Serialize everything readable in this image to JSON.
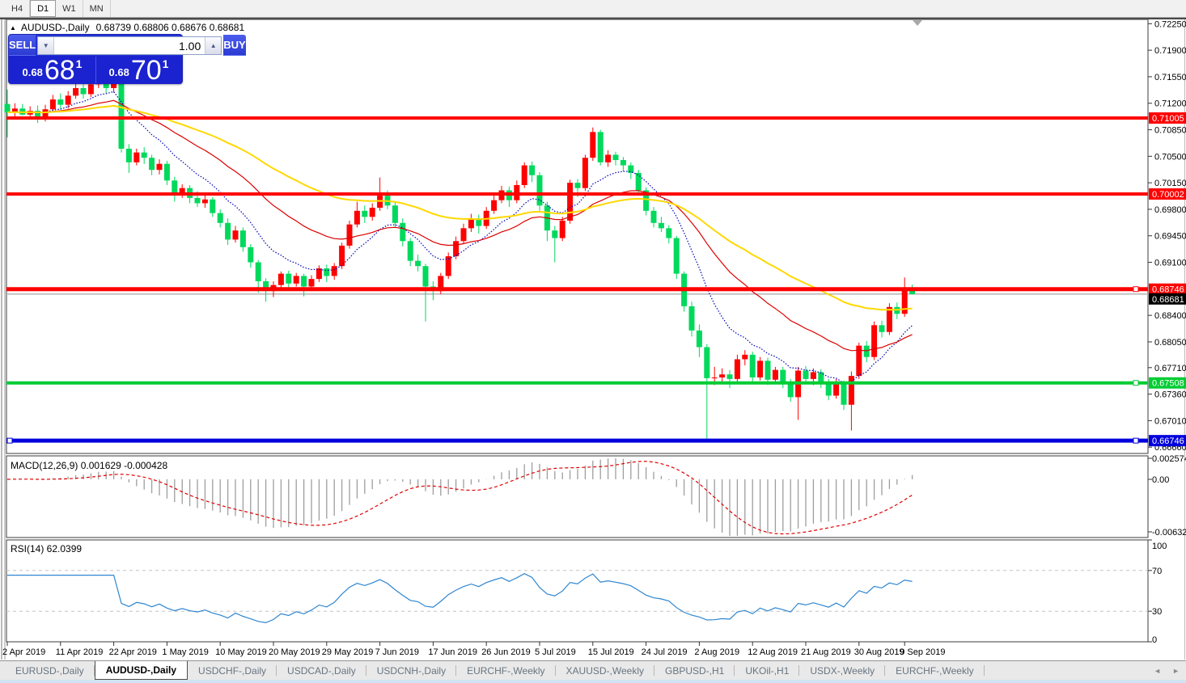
{
  "toolbar": {
    "timeframes": [
      {
        "label": "H4",
        "active": false
      },
      {
        "label": "D1",
        "active": true
      },
      {
        "label": "W1",
        "active": false
      },
      {
        "label": "MN",
        "active": false
      }
    ]
  },
  "header": {
    "collapse_icon": "▲",
    "symbol_title": "AUDUSD-,Daily",
    "ohlc_text": "0.68739 0.68806 0.68676 0.68681"
  },
  "trade_panel": {
    "sell_label": "SELL",
    "buy_label": "BUY",
    "volume_value": "1.00",
    "spin_down_icon": "▼",
    "spin_up_icon": "▲",
    "sell_price_small": "0.68",
    "sell_price_big": "68",
    "sell_price_sup": "1",
    "buy_price_small": "0.68",
    "buy_price_big": "70",
    "buy_price_sup": "1"
  },
  "tabs": {
    "items": [
      {
        "label": "EURUSD-,Daily",
        "active": false
      },
      {
        "label": "AUDUSD-,Daily",
        "active": true
      },
      {
        "label": "USDCHF-,Daily",
        "active": false
      },
      {
        "label": "USDCAD-,Daily",
        "active": false
      },
      {
        "label": "USDCNH-,Daily",
        "active": false
      },
      {
        "label": "EURCHF-,Weekly",
        "active": false
      },
      {
        "label": "XAUUSD-,Weekly",
        "active": false
      },
      {
        "label": "GBPUSD-,H1",
        "active": false
      },
      {
        "label": "UKOil-,H1",
        "active": false
      },
      {
        "label": "USDX-,Weekly",
        "active": false
      },
      {
        "label": "EURCHF-,Weekly",
        "active": false
      }
    ],
    "scroll_left_icon": "◄",
    "scroll_right_icon": "►"
  },
  "chart_data": {
    "type": "candlestick",
    "symbol": "AUDUSD-",
    "timeframe": "Daily",
    "bull_color": "#ff0000",
    "bear_color": "#00d95c",
    "current_price": {
      "value": 0.68681,
      "label": "0.68681"
    },
    "price_ticks": [
      "0.72250",
      "0.71900",
      "0.71550",
      "0.71200",
      "0.70850",
      "0.70500",
      "0.70150",
      "0.69800",
      "0.69450",
      "0.69100",
      "0.68400",
      "0.68050",
      "0.67710",
      "0.67360",
      "0.67010",
      "0.66660"
    ],
    "hlines": [
      {
        "price": 0.71005,
        "label": "0.71005",
        "color": "#ff0000",
        "width": 4,
        "handles": []
      },
      {
        "price": 0.70002,
        "label": "0.70002",
        "color": "#ff0000",
        "width": 4,
        "handles": []
      },
      {
        "price": 0.68746,
        "label": "0.68746",
        "color": "#ff0000",
        "width": 5,
        "handles": [
          1404
        ]
      },
      {
        "price": 0.67508,
        "label": "0.67508",
        "color": "#00cc33",
        "width": 4,
        "handles": [
          1404
        ]
      },
      {
        "price": 0.66746,
        "label": "0.66746",
        "color": "#0000dd",
        "width": 5,
        "handles": [
          12,
          1404
        ]
      }
    ],
    "ma_lines": [
      {
        "name": "ma-fast",
        "period": 10,
        "color": "#0000bb",
        "dash": "1.5,2",
        "width": 1.2
      },
      {
        "name": "ma-medium",
        "period": 25,
        "color": "#dd0000",
        "dash": "",
        "width": 1.2
      },
      {
        "name": "ma-slow",
        "period": 52,
        "color": "#ffd800",
        "dash": "",
        "width": 2
      }
    ],
    "date_ticks": [
      {
        "label": "2 Apr 2019",
        "bar": 0
      },
      {
        "label": "11 Apr 2019",
        "bar": 7
      },
      {
        "label": "22 Apr 2019",
        "bar": 14
      },
      {
        "label": "1 May 2019",
        "bar": 21
      },
      {
        "label": "10 May 2019",
        "bar": 28
      },
      {
        "label": "20 May 2019",
        "bar": 35
      },
      {
        "label": "29 May 2019",
        "bar": 42
      },
      {
        "label": "7 Jun 2019",
        "bar": 49
      },
      {
        "label": "17 Jun 2019",
        "bar": 56
      },
      {
        "label": "26 Jun 2019",
        "bar": 63
      },
      {
        "label": "5 Jul 2019",
        "bar": 70
      },
      {
        "label": "15 Jul 2019",
        "bar": 77
      },
      {
        "label": "24 Jul 2019",
        "bar": 84
      },
      {
        "label": "2 Aug 2019",
        "bar": 91
      },
      {
        "label": "12 Aug 2019",
        "bar": 98
      },
      {
        "label": "21 Aug 2019",
        "bar": 105
      },
      {
        "label": "30 Aug 2019",
        "bar": 112
      },
      {
        "label": "9 Sep 2019",
        "bar": 118
      }
    ],
    "macd": {
      "label": "MACD(12,26,9) 0.001629 -0.000428",
      "params": [
        12,
        26,
        9
      ],
      "main_value": "0.001629",
      "signal_value": "-0.000428",
      "scale_labels": [
        "0.002574",
        "0.00",
        "-0.006326"
      ],
      "ylim": [
        -0.006326,
        0.002574
      ],
      "hist_color": "#9e9e9e",
      "signal_color": "#e00000"
    },
    "rsi": {
      "label": "RSI(14) 62.0399",
      "period": 14,
      "value": "62.0399",
      "levels": [
        100,
        70,
        30,
        0
      ],
      "level_lines": [
        70,
        30
      ],
      "color": "#2e86d0",
      "ylim": [
        0,
        100
      ]
    },
    "candles": [
      [
        0.7119,
        0.7138,
        0.7075,
        0.7108
      ],
      [
        0.7108,
        0.712,
        0.7101,
        0.7113
      ],
      [
        0.7113,
        0.7119,
        0.7104,
        0.7105
      ],
      [
        0.7105,
        0.7116,
        0.71,
        0.711
      ],
      [
        0.711,
        0.7117,
        0.7094,
        0.71
      ],
      [
        0.71,
        0.7118,
        0.7096,
        0.7112
      ],
      [
        0.7112,
        0.7131,
        0.7108,
        0.7125
      ],
      [
        0.7125,
        0.7133,
        0.7112,
        0.7118
      ],
      [
        0.7118,
        0.7136,
        0.7113,
        0.713
      ],
      [
        0.713,
        0.7146,
        0.7126,
        0.714
      ],
      [
        0.714,
        0.7145,
        0.7126,
        0.7132
      ],
      [
        0.7132,
        0.715,
        0.7128,
        0.7145
      ],
      [
        0.7145,
        0.7158,
        0.714,
        0.7152
      ],
      [
        0.7152,
        0.7156,
        0.7133,
        0.714
      ],
      [
        0.714,
        0.7152,
        0.7134,
        0.7148
      ],
      [
        0.7148,
        0.715,
        0.7055,
        0.706
      ],
      [
        0.706,
        0.7066,
        0.7028,
        0.7042
      ],
      [
        0.7042,
        0.706,
        0.7038,
        0.7055
      ],
      [
        0.7055,
        0.7062,
        0.704,
        0.7048
      ],
      [
        0.7048,
        0.7052,
        0.7025,
        0.7032
      ],
      [
        0.7032,
        0.7046,
        0.7026,
        0.704
      ],
      [
        0.704,
        0.7044,
        0.7012,
        0.7018
      ],
      [
        0.7018,
        0.7023,
        0.699,
        0.7002
      ],
      [
        0.7002,
        0.7013,
        0.6995,
        0.7008
      ],
      [
        0.7008,
        0.7012,
        0.6988,
        0.6995
      ],
      [
        0.6995,
        0.7004,
        0.6983,
        0.6988
      ],
      [
        0.6988,
        0.6999,
        0.6982,
        0.6993
      ],
      [
        0.6993,
        0.6996,
        0.697,
        0.6975
      ],
      [
        0.6975,
        0.698,
        0.6956,
        0.6962
      ],
      [
        0.6962,
        0.6968,
        0.6933,
        0.694
      ],
      [
        0.694,
        0.6958,
        0.6936,
        0.6952
      ],
      [
        0.6952,
        0.6956,
        0.6924,
        0.693
      ],
      [
        0.693,
        0.6934,
        0.6903,
        0.691
      ],
      [
        0.691,
        0.6913,
        0.687,
        0.6885
      ],
      [
        0.6885,
        0.6889,
        0.6858,
        0.6872
      ],
      [
        0.6872,
        0.6885,
        0.6864,
        0.688
      ],
      [
        0.688,
        0.6898,
        0.6876,
        0.6895
      ],
      [
        0.6895,
        0.6899,
        0.6876,
        0.6882
      ],
      [
        0.6882,
        0.6896,
        0.6878,
        0.6892
      ],
      [
        0.6892,
        0.6895,
        0.6865,
        0.6878
      ],
      [
        0.6878,
        0.6893,
        0.6872,
        0.6888
      ],
      [
        0.6888,
        0.6906,
        0.6884,
        0.6902
      ],
      [
        0.6902,
        0.6907,
        0.6884,
        0.6892
      ],
      [
        0.6892,
        0.6909,
        0.6887,
        0.6905
      ],
      [
        0.6905,
        0.6936,
        0.6901,
        0.6932
      ],
      [
        0.6932,
        0.6965,
        0.6928,
        0.696
      ],
      [
        0.696,
        0.699,
        0.6956,
        0.6978
      ],
      [
        0.6978,
        0.6985,
        0.6962,
        0.697
      ],
      [
        0.697,
        0.6988,
        0.6965,
        0.6982
      ],
      [
        0.6982,
        0.7022,
        0.6978,
        0.6998
      ],
      [
        0.6998,
        0.7005,
        0.698,
        0.6985
      ],
      [
        0.6985,
        0.699,
        0.6956,
        0.6962
      ],
      [
        0.6962,
        0.6968,
        0.6931,
        0.6938
      ],
      [
        0.6938,
        0.6942,
        0.6905,
        0.6912
      ],
      [
        0.6912,
        0.692,
        0.6898,
        0.6905
      ],
      [
        0.6905,
        0.6908,
        0.6832,
        0.6878
      ],
      [
        0.6878,
        0.6885,
        0.686,
        0.6872
      ],
      [
        0.6872,
        0.6896,
        0.6868,
        0.6892
      ],
      [
        0.6892,
        0.6923,
        0.6888,
        0.6918
      ],
      [
        0.6918,
        0.6944,
        0.6914,
        0.6938
      ],
      [
        0.6938,
        0.6961,
        0.6934,
        0.6955
      ],
      [
        0.6955,
        0.6974,
        0.695,
        0.6968
      ],
      [
        0.6968,
        0.6973,
        0.6948,
        0.6958
      ],
      [
        0.6958,
        0.6983,
        0.6954,
        0.6978
      ],
      [
        0.6978,
        0.6999,
        0.6974,
        0.6992
      ],
      [
        0.6992,
        0.7011,
        0.6988,
        0.7005
      ],
      [
        0.7005,
        0.701,
        0.6983,
        0.6992
      ],
      [
        0.6992,
        0.7018,
        0.6988,
        0.7012
      ],
      [
        0.7012,
        0.7042,
        0.7008,
        0.7038
      ],
      [
        0.7038,
        0.7043,
        0.7016,
        0.7025
      ],
      [
        0.7025,
        0.7029,
        0.6978,
        0.6985
      ],
      [
        0.6985,
        0.699,
        0.6938,
        0.6952
      ],
      [
        0.6952,
        0.6958,
        0.691,
        0.6942
      ],
      [
        0.6942,
        0.697,
        0.6938,
        0.6965
      ],
      [
        0.6965,
        0.7019,
        0.6961,
        0.7015
      ],
      [
        0.7015,
        0.702,
        0.6996,
        0.7008
      ],
      [
        0.7008,
        0.7052,
        0.7004,
        0.7048
      ],
      [
        0.7048,
        0.7088,
        0.7044,
        0.7082
      ],
      [
        0.7082,
        0.7085,
        0.7038,
        0.7042
      ],
      [
        0.7042,
        0.7058,
        0.7036,
        0.7052
      ],
      [
        0.7052,
        0.7056,
        0.7038,
        0.7045
      ],
      [
        0.7045,
        0.7049,
        0.703,
        0.7038
      ],
      [
        0.7038,
        0.7042,
        0.702,
        0.7028
      ],
      [
        0.7028,
        0.7032,
        0.6998,
        0.7005
      ],
      [
        0.7005,
        0.7009,
        0.6972,
        0.6978
      ],
      [
        0.6978,
        0.6983,
        0.6956,
        0.6962
      ],
      [
        0.6962,
        0.697,
        0.695,
        0.6955
      ],
      [
        0.6955,
        0.6959,
        0.6935,
        0.6942
      ],
      [
        0.6942,
        0.6945,
        0.6888,
        0.6895
      ],
      [
        0.6895,
        0.6898,
        0.6845,
        0.6852
      ],
      [
        0.6852,
        0.6858,
        0.6812,
        0.682
      ],
      [
        0.682,
        0.6828,
        0.6785,
        0.6798
      ],
      [
        0.6798,
        0.6802,
        0.6677,
        0.6757
      ],
      [
        0.6757,
        0.6772,
        0.6748,
        0.6758
      ],
      [
        0.6758,
        0.677,
        0.6752,
        0.6762
      ],
      [
        0.6762,
        0.6768,
        0.6744,
        0.6756
      ],
      [
        0.6756,
        0.6788,
        0.6752,
        0.6782
      ],
      [
        0.6782,
        0.6794,
        0.6774,
        0.6788
      ],
      [
        0.6788,
        0.6792,
        0.6752,
        0.6758
      ],
      [
        0.6758,
        0.6785,
        0.6754,
        0.678
      ],
      [
        0.678,
        0.6784,
        0.6748,
        0.6755
      ],
      [
        0.6755,
        0.6772,
        0.675,
        0.6768
      ],
      [
        0.6768,
        0.6772,
        0.6744,
        0.6752
      ],
      [
        0.6752,
        0.6756,
        0.6726,
        0.6732
      ],
      [
        0.6732,
        0.6772,
        0.6702,
        0.6767
      ],
      [
        0.6767,
        0.6773,
        0.675,
        0.6756
      ],
      [
        0.6756,
        0.677,
        0.6748,
        0.6765
      ],
      [
        0.6765,
        0.6769,
        0.6744,
        0.675
      ],
      [
        0.675,
        0.6756,
        0.6728,
        0.6734
      ],
      [
        0.6734,
        0.6756,
        0.673,
        0.675
      ],
      [
        0.675,
        0.6754,
        0.6715,
        0.6722
      ],
      [
        0.6722,
        0.6766,
        0.6688,
        0.676
      ],
      [
        0.676,
        0.6804,
        0.6756,
        0.68
      ],
      [
        0.68,
        0.6806,
        0.6778,
        0.6785
      ],
      [
        0.6785,
        0.6832,
        0.6781,
        0.6827
      ],
      [
        0.6827,
        0.6833,
        0.6811,
        0.6818
      ],
      [
        0.6818,
        0.6856,
        0.6814,
        0.6851
      ],
      [
        0.6851,
        0.6857,
        0.6835,
        0.6842
      ],
      [
        0.6842,
        0.689,
        0.6838,
        0.6875
      ],
      [
        0.68739,
        0.68806,
        0.68676,
        0.68681
      ]
    ]
  }
}
